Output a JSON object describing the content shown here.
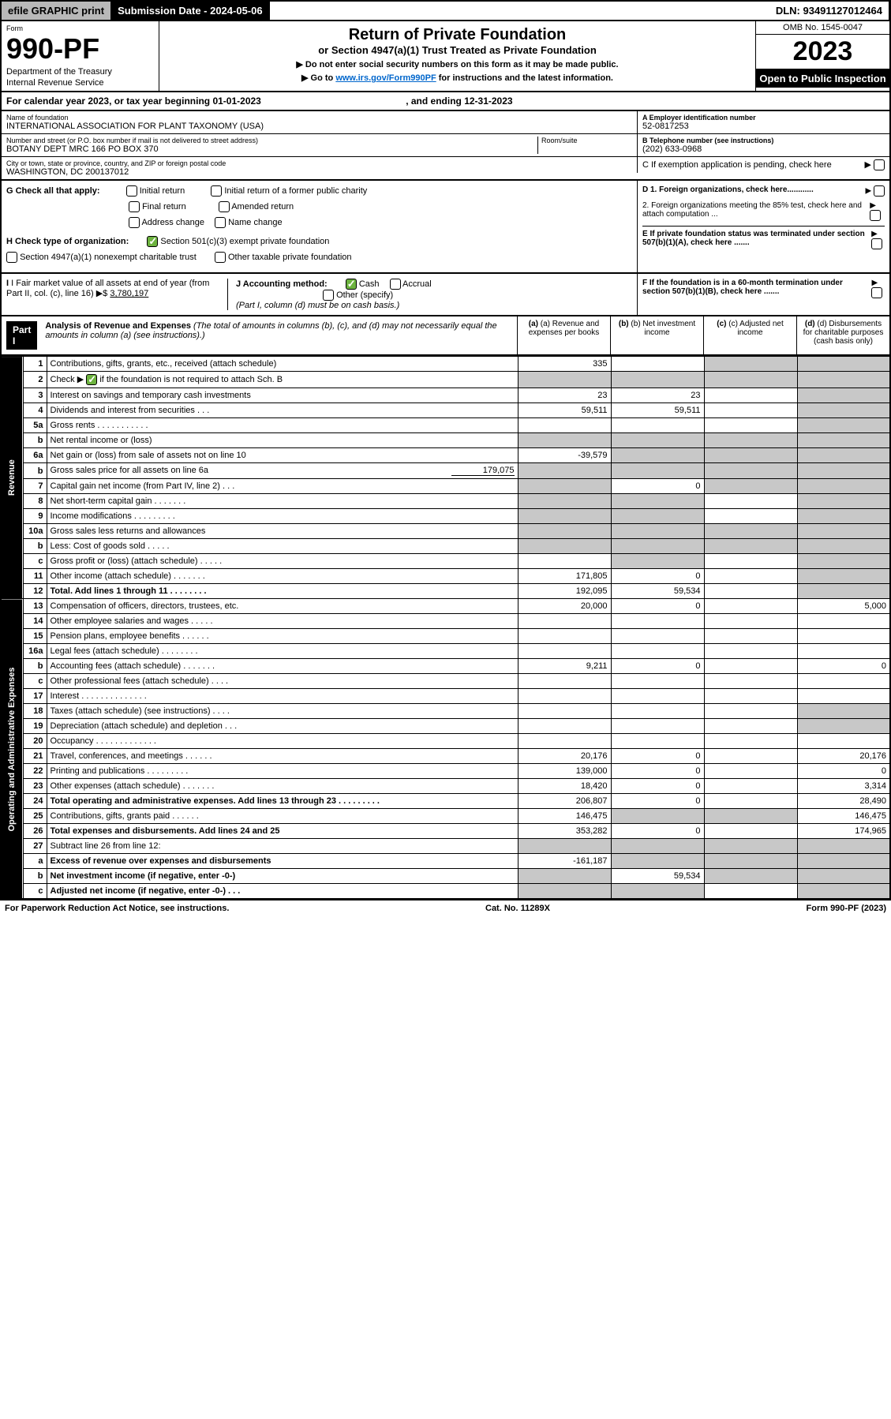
{
  "topbar": {
    "efile": "efile GRAPHIC print",
    "submission": "Submission Date - 2024-05-06",
    "dln": "DLN: 93491127012464"
  },
  "header": {
    "form_label": "Form",
    "form_num": "990-PF",
    "dept": "Department of the Treasury",
    "irs": "Internal Revenue Service",
    "title": "Return of Private Foundation",
    "subtitle": "or Section 4947(a)(1) Trust Treated as Private Foundation",
    "note1": "▶ Do not enter social security numbers on this form as it may be made public.",
    "note2_pre": "▶ Go to ",
    "note2_link": "www.irs.gov/Form990PF",
    "note2_post": " for instructions and the latest information.",
    "omb": "OMB No. 1545-0047",
    "year": "2023",
    "open": "Open to Public Inspection"
  },
  "calendar": {
    "text_pre": "For calendar year 2023, or tax year beginning ",
    "begin": "01-01-2023",
    "text_mid": " , and ending ",
    "end": "12-31-2023"
  },
  "info": {
    "name_label": "Name of foundation",
    "name": "INTERNATIONAL ASSOCIATION FOR PLANT TAXONOMY (USA)",
    "addr_label": "Number and street (or P.O. box number if mail is not delivered to street address)",
    "addr": "BOTANY DEPT MRC 166 PO BOX 370",
    "room_label": "Room/suite",
    "city_label": "City or town, state or province, country, and ZIP or foreign postal code",
    "city": "WASHINGTON, DC  200137012",
    "ein_label": "A Employer identification number",
    "ein": "52-0817253",
    "phone_label": "B Telephone number (see instructions)",
    "phone": "(202) 633-0968",
    "c_label": "C If exemption application is pending, check here"
  },
  "g": {
    "label": "G Check all that apply:",
    "opts": [
      "Initial return",
      "Final return",
      "Address change",
      "Initial return of a former public charity",
      "Amended return",
      "Name change"
    ]
  },
  "h": {
    "label": "H Check type of organization:",
    "opt1": "Section 501(c)(3) exempt private foundation",
    "opt2": "Section 4947(a)(1) nonexempt charitable trust",
    "opt3": "Other taxable private foundation"
  },
  "d": {
    "d1": "D 1. Foreign organizations, check here............",
    "d2": "2. Foreign organizations meeting the 85% test, check here and attach computation ...",
    "e": "E  If private foundation status was terminated under section 507(b)(1)(A), check here .......",
    "f": "F  If the foundation is in a 60-month termination under section 507(b)(1)(B), check here ......."
  },
  "i": {
    "label": "I Fair market value of all assets at end of year (from Part II, col. (c), line 16)",
    "value": "3,780,197",
    "arrow": "▶$"
  },
  "j": {
    "label": "J Accounting method:",
    "cash": "Cash",
    "accrual": "Accrual",
    "other": "Other (specify)",
    "note": "(Part I, column (d) must be on cash basis.)"
  },
  "part1": {
    "header": "Part I",
    "title": "Analysis of Revenue and Expenses",
    "title_note": "(The total of amounts in columns (b), (c), and (d) may not necessarily equal the amounts in column (a) (see instructions).)",
    "cols": {
      "a": "(a) Revenue and expenses per books",
      "b": "(b) Net investment income",
      "c": "(c) Adjusted net income",
      "d": "(d) Disbursements for charitable purposes (cash basis only)"
    }
  },
  "side_labels": {
    "revenue": "Revenue",
    "expenses": "Operating and Administrative Expenses"
  },
  "rows": [
    {
      "n": "1",
      "desc": "Contributions, gifts, grants, etc., received (attach schedule)",
      "a": "335",
      "b": "",
      "c": "",
      "d": "",
      "shade_c": true,
      "shade_d": true
    },
    {
      "n": "2",
      "desc_pre": "Check ▶ ",
      "desc_post": " if the foundation is not required to attach Sch. B",
      "checked": true,
      "shade_all": true
    },
    {
      "n": "3",
      "desc": "Interest on savings and temporary cash investments",
      "a": "23",
      "b": "23",
      "c": "",
      "d": "",
      "shade_d": true
    },
    {
      "n": "4",
      "desc": "Dividends and interest from securities  .  .  .",
      "a": "59,511",
      "b": "59,511",
      "c": "",
      "d": "",
      "shade_d": true
    },
    {
      "n": "5a",
      "desc": "Gross rents  .  .  .  .  .  .  .  .  .  .  .",
      "shade_d": true
    },
    {
      "n": "b",
      "desc": "Net rental income or (loss)",
      "shade_all_amt": true
    },
    {
      "n": "6a",
      "desc": "Net gain or (loss) from sale of assets not on line 10",
      "a": "-39,579",
      "shade_bcd": true
    },
    {
      "n": "b",
      "desc_pre": "Gross sales price for all assets on line 6a",
      "inline_val": "179,075",
      "shade_all_amt": true
    },
    {
      "n": "7",
      "desc": "Capital gain net income (from Part IV, line 2)  .  .  .",
      "b": "0",
      "shade_a": true,
      "shade_cd": true
    },
    {
      "n": "8",
      "desc": "Net short-term capital gain  .  .  .  .  .  .  .",
      "shade_ab": true,
      "shade_d": true
    },
    {
      "n": "9",
      "desc": "Income modifications  .  .  .  .  .  .  .  .  .",
      "shade_ab": true,
      "shade_d": true
    },
    {
      "n": "10a",
      "desc": "Gross sales less returns and allowances",
      "shade_all_amt": true
    },
    {
      "n": "b",
      "desc": "Less: Cost of goods sold  .  .  .  .  .",
      "shade_all_amt": true
    },
    {
      "n": "c",
      "desc": "Gross profit or (loss) (attach schedule)  .  .  .  .  .",
      "shade_b": true,
      "shade_d": true
    },
    {
      "n": "11",
      "desc": "Other income (attach schedule)  .  .  .  .  .  .  .",
      "a": "171,805",
      "b": "0",
      "shade_d": true
    },
    {
      "n": "12",
      "desc": "Total. Add lines 1 through 11  .  .  .  .  .  .  .  .",
      "bold": true,
      "a": "192,095",
      "b": "59,534",
      "shade_d": true
    },
    {
      "n": "13",
      "desc": "Compensation of officers, directors, trustees, etc.",
      "a": "20,000",
      "b": "0",
      "d": "5,000"
    },
    {
      "n": "14",
      "desc": "Other employee salaries and wages  .  .  .  .  ."
    },
    {
      "n": "15",
      "desc": "Pension plans, employee benefits  .  .  .  .  .  ."
    },
    {
      "n": "16a",
      "desc": "Legal fees (attach schedule)  .  .  .  .  .  .  .  ."
    },
    {
      "n": "b",
      "desc": "Accounting fees (attach schedule)  .  .  .  .  .  .  .",
      "a": "9,211",
      "b": "0",
      "d": "0"
    },
    {
      "n": "c",
      "desc": "Other professional fees (attach schedule)  .  .  .  ."
    },
    {
      "n": "17",
      "desc": "Interest  .  .  .  .  .  .  .  .  .  .  .  .  .  ."
    },
    {
      "n": "18",
      "desc": "Taxes (attach schedule) (see instructions)  .  .  .  .",
      "shade_d": true
    },
    {
      "n": "19",
      "desc": "Depreciation (attach schedule) and depletion  .  .  .",
      "shade_d": true
    },
    {
      "n": "20",
      "desc": "Occupancy  .  .  .  .  .  .  .  .  .  .  .  .  ."
    },
    {
      "n": "21",
      "desc": "Travel, conferences, and meetings  .  .  .  .  .  .",
      "a": "20,176",
      "b": "0",
      "d": "20,176"
    },
    {
      "n": "22",
      "desc": "Printing and publications  .  .  .  .  .  .  .  .  .",
      "a": "139,000",
      "b": "0",
      "d": "0"
    },
    {
      "n": "23",
      "desc": "Other expenses (attach schedule)  .  .  .  .  .  .  .",
      "a": "18,420",
      "b": "0",
      "d": "3,314"
    },
    {
      "n": "24",
      "desc": "Total operating and administrative expenses. Add lines 13 through 23  .  .  .  .  .  .  .  .  .",
      "bold": true,
      "a": "206,807",
      "b": "0",
      "d": "28,490"
    },
    {
      "n": "25",
      "desc": "Contributions, gifts, grants paid  .  .  .  .  .  .",
      "a": "146,475",
      "shade_bc": true,
      "d": "146,475"
    },
    {
      "n": "26",
      "desc": "Total expenses and disbursements. Add lines 24 and 25",
      "bold": true,
      "a": "353,282",
      "b": "0",
      "d": "174,965"
    },
    {
      "n": "27",
      "desc": "Subtract line 26 from line 12:",
      "shade_all_amt": true
    },
    {
      "n": "a",
      "desc": "Excess of revenue over expenses and disbursements",
      "bold": true,
      "a": "-161,187",
      "shade_bcd": true
    },
    {
      "n": "b",
      "desc": "Net investment income (if negative, enter -0-)",
      "bold": true,
      "b": "59,534",
      "shade_a": true,
      "shade_cd": true
    },
    {
      "n": "c",
      "desc": "Adjusted net income (if negative, enter -0-)  .  .  .",
      "bold": true,
      "shade_ab": true,
      "shade_d": true
    }
  ],
  "footer": {
    "left": "For Paperwork Reduction Act Notice, see instructions.",
    "mid": "Cat. No. 11289X",
    "right": "Form 990-PF (2023)"
  },
  "revenue_end_index": 15
}
